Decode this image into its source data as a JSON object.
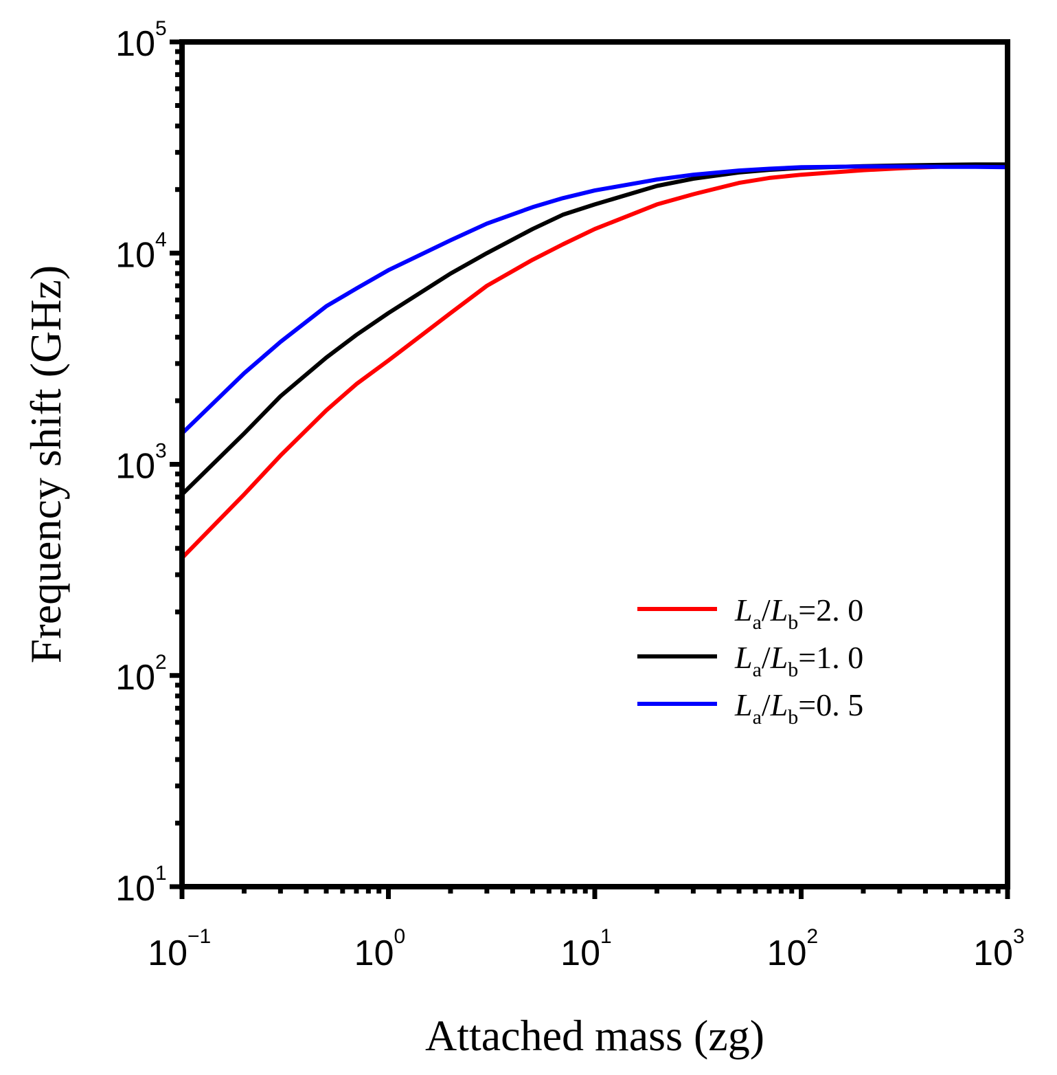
{
  "chart_data": {
    "type": "line",
    "title": "",
    "xlabel": "Attached mass (zg)",
    "ylabel": "Frequency shift (GHz)",
    "xscale": "log",
    "yscale": "log",
    "xlim": [
      0.1,
      1000
    ],
    "ylim": [
      10,
      100000
    ],
    "grid": false,
    "legend_position": "lower-right",
    "x_ticks": [
      {
        "value": 0.1,
        "base": "10",
        "exp": "−1"
      },
      {
        "value": 1,
        "base": "10",
        "exp": "0"
      },
      {
        "value": 10,
        "base": "10",
        "exp": "1"
      },
      {
        "value": 100,
        "base": "10",
        "exp": "2"
      },
      {
        "value": 1000,
        "base": "10",
        "exp": "3"
      }
    ],
    "y_ticks": [
      {
        "value": 10,
        "base": "10",
        "exp": "1"
      },
      {
        "value": 100,
        "base": "10",
        "exp": "2"
      },
      {
        "value": 1000,
        "base": "10",
        "exp": "3"
      },
      {
        "value": 10000,
        "base": "10",
        "exp": "4"
      },
      {
        "value": 100000,
        "base": "10",
        "exp": "5"
      }
    ],
    "x": [
      0.1,
      0.2,
      0.3,
      0.5,
      0.7,
      1,
      2,
      3,
      5,
      7,
      10,
      20,
      30,
      50,
      70,
      100,
      200,
      300,
      500,
      700,
      1000
    ],
    "series": [
      {
        "name": "La/Lb=2.0",
        "legend": {
          "L1": "L",
          "sub1": "a",
          "slash": "/",
          "L2": "L",
          "sub2": "b",
          "value": "=2. 0"
        },
        "color": "#ff0000",
        "values": [
          360,
          720,
          1100,
          1800,
          2400,
          3100,
          5200,
          7000,
          9300,
          11000,
          13000,
          17000,
          19000,
          21500,
          22700,
          23500,
          24700,
          25200,
          25700,
          25900,
          26000
        ]
      },
      {
        "name": "La/Lb=1.0",
        "legend": {
          "L1": "L",
          "sub1": "a",
          "slash": "/",
          "L2": "L",
          "sub2": "b",
          "value": "=1. 0"
        },
        "color": "#000000",
        "values": [
          720,
          1400,
          2100,
          3200,
          4100,
          5200,
          8000,
          10000,
          13000,
          15200,
          17000,
          20800,
          22500,
          24100,
          24800,
          25300,
          25800,
          26000,
          26200,
          26300,
          26300
        ]
      },
      {
        "name": "La/Lb=0.5",
        "legend": {
          "L1": "L",
          "sub1": "a",
          "slash": "/",
          "L2": "L",
          "sub2": "b",
          "value": "=0. 5"
        },
        "color": "#0000ff",
        "values": [
          1400,
          2700,
          3800,
          5600,
          6800,
          8300,
          11500,
          13800,
          16500,
          18200,
          19800,
          22300,
          23500,
          24600,
          25100,
          25500,
          25700,
          25700,
          25600,
          25600,
          25500
        ]
      }
    ]
  }
}
